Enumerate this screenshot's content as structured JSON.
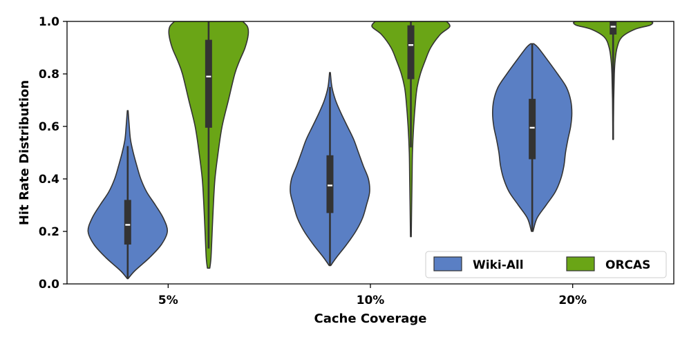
{
  "chart_data": {
    "type": "violin",
    "xlabel": "Cache Coverage",
    "ylabel": "Hit Rate Distribution",
    "ylim": [
      0.0,
      1.0
    ],
    "yticks": [
      "0.0",
      "0.2",
      "0.4",
      "0.6",
      "0.8",
      "1.0"
    ],
    "categories": [
      "5%",
      "10%",
      "20%"
    ],
    "legend": {
      "position": "lower-right",
      "columns": 2
    },
    "series": [
      {
        "name": "Wiki-All",
        "color": "#5a7fc4",
        "groups": [
          {
            "category": "5%",
            "min": 0.02,
            "max": 0.66,
            "q1": 0.15,
            "median": 0.225,
            "q3": 0.32,
            "whisker_low": 0.02,
            "whisker_high": 0.525,
            "profile": [
              [
                0.02,
                0.01
              ],
              [
                0.05,
                0.18
              ],
              [
                0.1,
                0.55
              ],
              [
                0.15,
                0.85
              ],
              [
                0.2,
                1.0
              ],
              [
                0.25,
                0.9
              ],
              [
                0.3,
                0.7
              ],
              [
                0.35,
                0.48
              ],
              [
                0.4,
                0.33
              ],
              [
                0.45,
                0.23
              ],
              [
                0.5,
                0.14
              ],
              [
                0.55,
                0.07
              ],
              [
                0.6,
                0.04
              ],
              [
                0.66,
                0.01
              ]
            ]
          },
          {
            "category": "10%",
            "min": 0.07,
            "max": 0.805,
            "q1": 0.27,
            "median": 0.375,
            "q3": 0.49,
            "whisker_low": 0.07,
            "whisker_high": 0.75,
            "profile": [
              [
                0.07,
                0.02
              ],
              [
                0.1,
                0.16
              ],
              [
                0.15,
                0.42
              ],
              [
                0.2,
                0.65
              ],
              [
                0.25,
                0.82
              ],
              [
                0.3,
                0.92
              ],
              [
                0.35,
                1.0
              ],
              [
                0.4,
                0.97
              ],
              [
                0.45,
                0.84
              ],
              [
                0.5,
                0.72
              ],
              [
                0.55,
                0.6
              ],
              [
                0.6,
                0.44
              ],
              [
                0.65,
                0.28
              ],
              [
                0.7,
                0.14
              ],
              [
                0.75,
                0.05
              ],
              [
                0.805,
                0.01
              ]
            ]
          },
          {
            "category": "20%",
            "min": 0.2,
            "max": 0.915,
            "q1": 0.475,
            "median": 0.595,
            "q3": 0.705,
            "whisker_low": 0.2,
            "whisker_high": 0.915,
            "profile": [
              [
                0.2,
                0.02
              ],
              [
                0.25,
                0.12
              ],
              [
                0.3,
                0.35
              ],
              [
                0.35,
                0.58
              ],
              [
                0.4,
                0.72
              ],
              [
                0.45,
                0.8
              ],
              [
                0.5,
                0.84
              ],
              [
                0.55,
                0.9
              ],
              [
                0.6,
                0.97
              ],
              [
                0.65,
                1.0
              ],
              [
                0.7,
                0.97
              ],
              [
                0.75,
                0.86
              ],
              [
                0.8,
                0.64
              ],
              [
                0.85,
                0.4
              ],
              [
                0.9,
                0.15
              ],
              [
                0.915,
                0.04
              ]
            ]
          }
        ]
      },
      {
        "name": "ORCAS",
        "color": "#6aa516",
        "groups": [
          {
            "category": "5%",
            "min": 0.06,
            "max": 1.0,
            "q1": 0.595,
            "median": 0.79,
            "q3": 0.93,
            "whisker_low": 0.135,
            "whisker_high": 1.0,
            "profile": [
              [
                0.06,
                0.03
              ],
              [
                0.1,
                0.06
              ],
              [
                0.2,
                0.09
              ],
              [
                0.3,
                0.12
              ],
              [
                0.4,
                0.16
              ],
              [
                0.5,
                0.24
              ],
              [
                0.6,
                0.34
              ],
              [
                0.7,
                0.5
              ],
              [
                0.8,
                0.66
              ],
              [
                0.85,
                0.78
              ],
              [
                0.9,
                0.92
              ],
              [
                0.95,
                1.0
              ],
              [
                0.98,
                0.98
              ],
              [
                1.0,
                0.86
              ]
            ]
          },
          {
            "category": "10%",
            "min": 0.18,
            "max": 1.0,
            "q1": 0.78,
            "median": 0.91,
            "q3": 0.985,
            "whisker_low": 0.52,
            "whisker_high": 1.0,
            "profile": [
              [
                0.18,
                0.01
              ],
              [
                0.3,
                0.02
              ],
              [
                0.4,
                0.03
              ],
              [
                0.5,
                0.04
              ],
              [
                0.6,
                0.07
              ],
              [
                0.7,
                0.12
              ],
              [
                0.75,
                0.16
              ],
              [
                0.8,
                0.24
              ],
              [
                0.85,
                0.36
              ],
              [
                0.9,
                0.5
              ],
              [
                0.95,
                0.74
              ],
              [
                0.98,
                0.98
              ],
              [
                1.0,
                0.9
              ]
            ]
          },
          {
            "category": "20%",
            "min": 0.55,
            "max": 1.0,
            "q1": 0.95,
            "median": 0.98,
            "q3": 1.0,
            "whisker_low": 0.55,
            "whisker_high": 1.0,
            "profile": [
              [
                0.55,
                0.005
              ],
              [
                0.7,
                0.015
              ],
              [
                0.8,
                0.03
              ],
              [
                0.85,
                0.05
              ],
              [
                0.9,
                0.1
              ],
              [
                0.94,
                0.22
              ],
              [
                0.97,
                0.55
              ],
              [
                0.985,
                0.92
              ],
              [
                0.995,
                1.0
              ],
              [
                1.0,
                0.95
              ]
            ]
          }
        ]
      }
    ]
  }
}
